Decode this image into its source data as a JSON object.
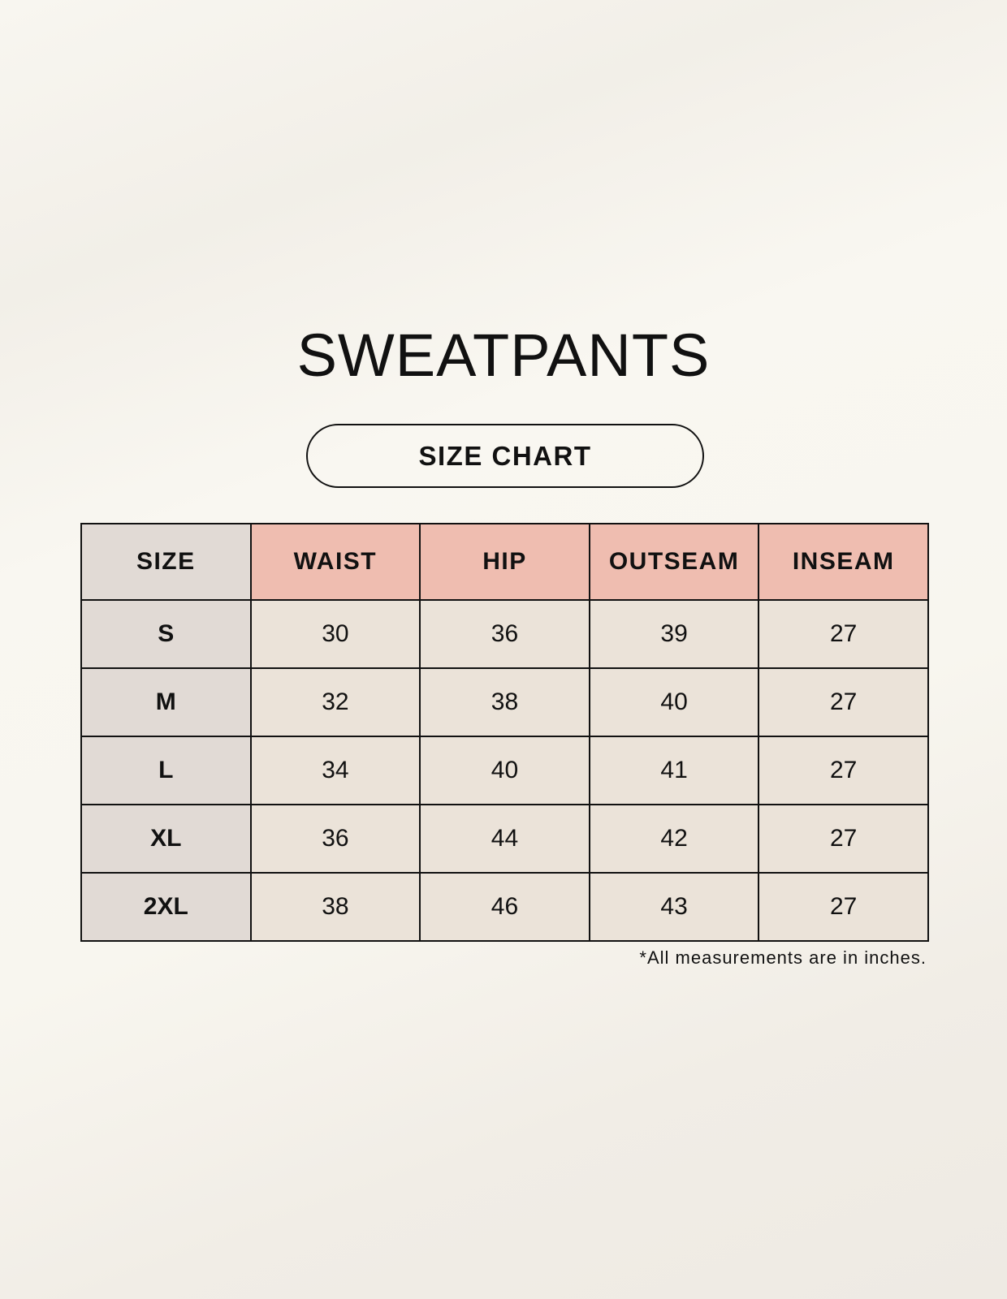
{
  "title": "SWEATPANTS",
  "subtitle": "SIZE CHART",
  "colors": {
    "header": "#efbdb0",
    "size_column": "#e1dad5",
    "cell": "#ebe3d9"
  },
  "table": {
    "headers": [
      "SIZE",
      "WAIST",
      "HIP",
      "OUTSEAM",
      "INSEAM"
    ],
    "rows": [
      [
        "S",
        "30",
        "36",
        "39",
        "27"
      ],
      [
        "M",
        "32",
        "38",
        "40",
        "27"
      ],
      [
        "L",
        "34",
        "40",
        "41",
        "27"
      ],
      [
        "XL",
        "36",
        "44",
        "42",
        "27"
      ],
      [
        "2XL",
        "38",
        "46",
        "43",
        "27"
      ]
    ]
  },
  "footnote": "*All measurements are in inches."
}
